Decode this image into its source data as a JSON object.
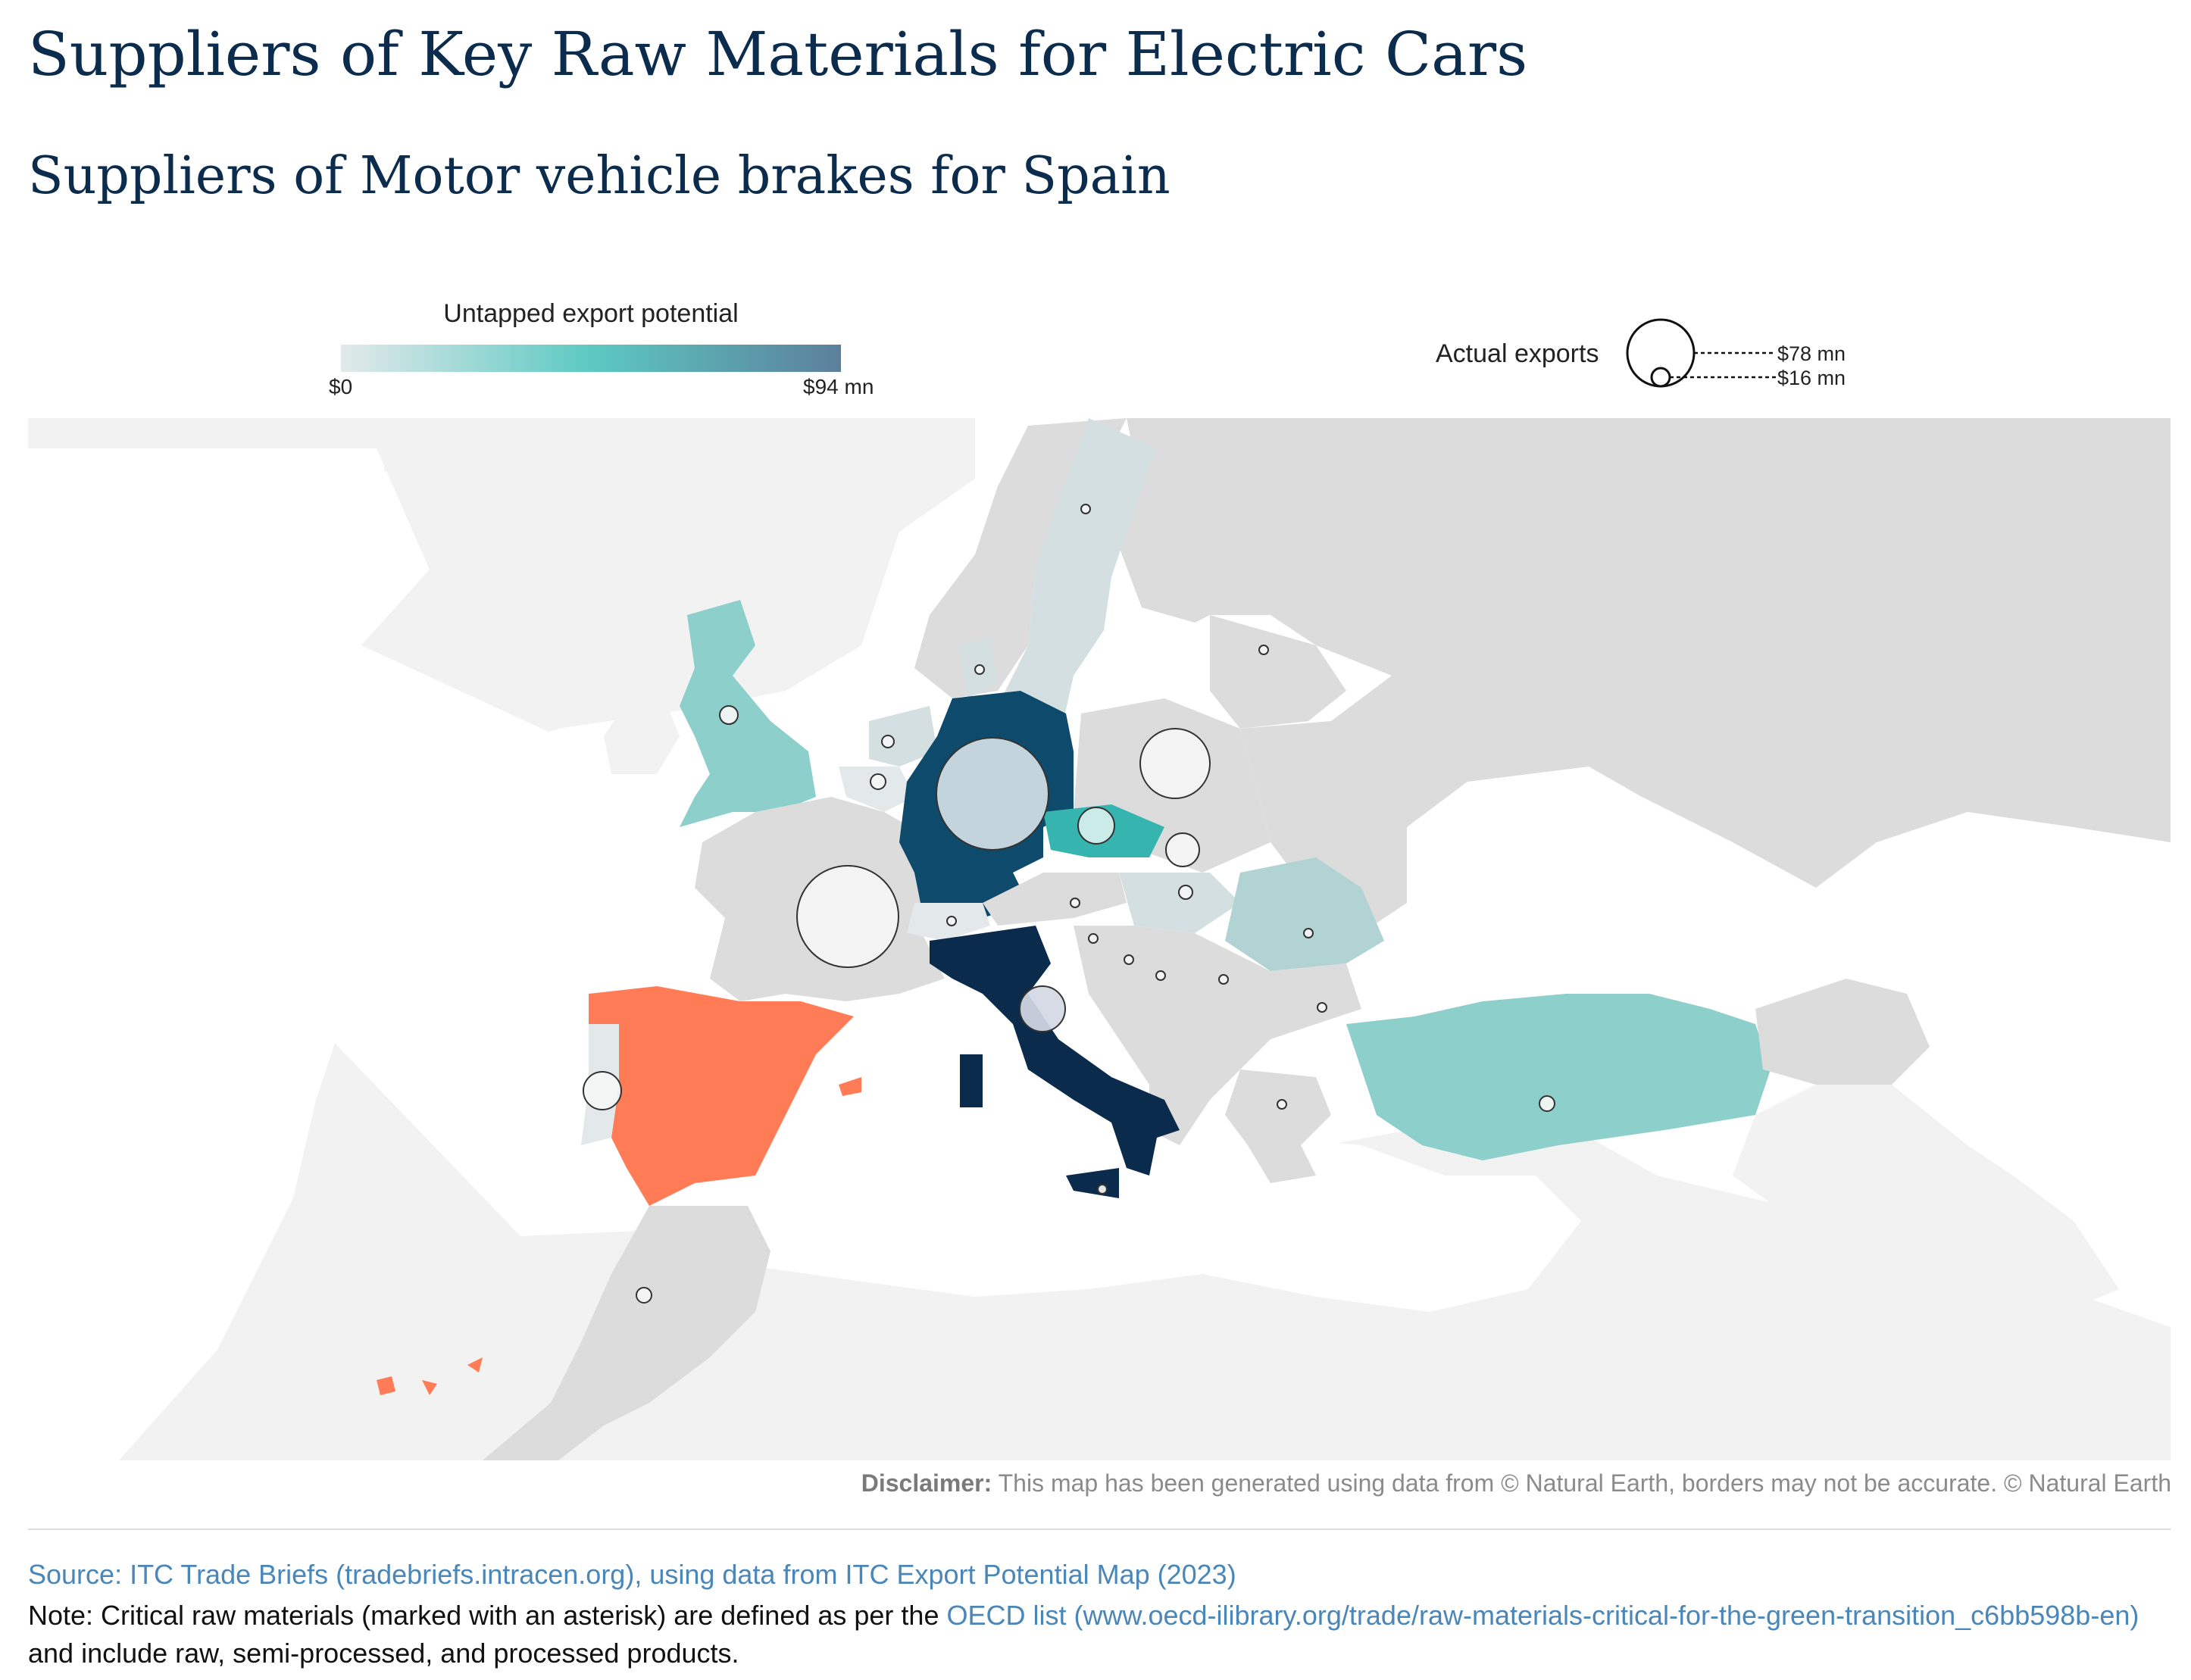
{
  "header": {
    "title": "Suppliers of Key Raw Materials for Electric Cars",
    "subtitle": "Suppliers of Motor vehicle brakes for Spain"
  },
  "legend": {
    "color_title": "Untapped export potential",
    "color_min": "$0",
    "color_max": "$94 mn",
    "gradient_colors": [
      "#e3e9ea",
      "#5cc9c2",
      "#5c7f9c"
    ],
    "size_title": "Actual exports",
    "size_large": "$78 mn",
    "size_small": "$16 mn"
  },
  "colors": {
    "spain_target": "#ff7c57",
    "no_data": "#dcdcdc",
    "sea_region": "#f2f2f2",
    "germany": "#0d4a6b",
    "italy": "#0b2b4d",
    "czechia": "#36b5b0",
    "teal_light": "#8ccfcb",
    "teal_pale": "#b2d3d4",
    "bubble_fill": "#f5f5f5",
    "bubble_stroke": "#333333"
  },
  "map": {
    "target_country": "Spain",
    "suppliers": [
      {
        "country": "Germany",
        "export_mn": 78,
        "potential_level": "very high"
      },
      {
        "country": "France",
        "export_mn": 70,
        "potential_level": "none"
      },
      {
        "country": "Poland",
        "export_mn": 34,
        "potential_level": "none"
      },
      {
        "country": "Italy",
        "export_mn": 16,
        "potential_level": "highest"
      },
      {
        "country": "Czechia",
        "export_mn": 10,
        "potential_level": "high"
      },
      {
        "country": "Portugal",
        "export_mn": 10,
        "potential_level": "none"
      },
      {
        "country": "Slovakia",
        "export_mn": 8,
        "potential_level": "none"
      },
      {
        "country": "United Kingdom",
        "export_mn": 2,
        "potential_level": "medium"
      },
      {
        "country": "Hungary",
        "export_mn": 1,
        "potential_level": "low"
      },
      {
        "country": "Turkey",
        "export_mn": 1,
        "potential_level": "medium"
      },
      {
        "country": "Romania",
        "export_mn": 1,
        "potential_level": "medium"
      },
      {
        "country": "Netherlands",
        "export_mn": 1,
        "potential_level": "low"
      },
      {
        "country": "Belgium",
        "export_mn": 1,
        "potential_level": "low"
      },
      {
        "country": "Morocco",
        "export_mn": 1,
        "potential_level": "none"
      },
      {
        "country": "Sweden",
        "export_mn": 0.5,
        "potential_level": "low"
      },
      {
        "country": "Denmark",
        "export_mn": 0.5,
        "potential_level": "low"
      },
      {
        "country": "Lithuania",
        "export_mn": 0.5,
        "potential_level": "none"
      },
      {
        "country": "Switzerland",
        "export_mn": 0.5,
        "potential_level": "low"
      },
      {
        "country": "Austria",
        "export_mn": 0.5,
        "potential_level": "none"
      },
      {
        "country": "Slovenia",
        "export_mn": 0.5,
        "potential_level": "none"
      },
      {
        "country": "Croatia",
        "export_mn": 0.5,
        "potential_level": "none"
      },
      {
        "country": "Bosnia and Herzegovina",
        "export_mn": 0.5,
        "potential_level": "none"
      },
      {
        "country": "Serbia",
        "export_mn": 0.5,
        "potential_level": "none"
      },
      {
        "country": "Bulgaria",
        "export_mn": 0.5,
        "potential_level": "none"
      },
      {
        "country": "Greece",
        "export_mn": 0.5,
        "potential_level": "none"
      },
      {
        "country": "Malta",
        "export_mn": 0.5,
        "potential_level": "none"
      }
    ]
  },
  "disclaimer": {
    "label": "Disclaimer:",
    "text": " This map has been generated using data from © Natural Earth, borders may not be accurate. © Natural Earth"
  },
  "footer": {
    "source": "Source: ITC Trade Briefs (tradebriefs.intracen.org), using data from ITC Export Potential Map (2023)",
    "note_prefix": "Note: Critical raw materials (marked with an asterisk) are defined as per the ",
    "note_link": "OECD list (www.oecd-ilibrary.org/trade/raw-materials-critical-for-the-green-transition_c6bb598b-en)",
    "note_suffix": " and include raw, semi-processed, and processed products."
  }
}
